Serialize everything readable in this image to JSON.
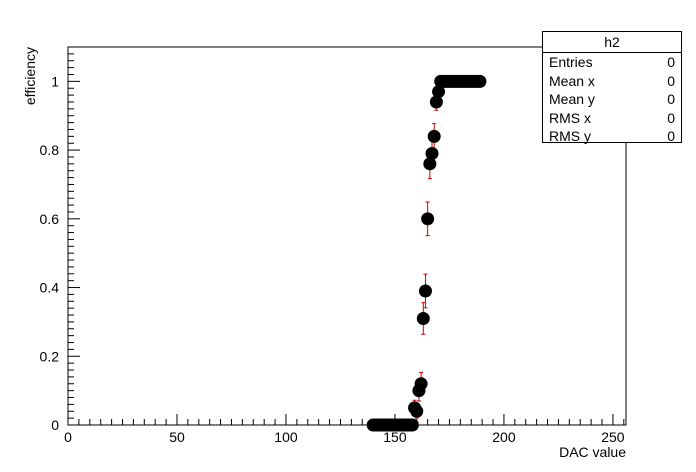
{
  "chart_data": {
    "type": "scatter",
    "title": "",
    "xlabel": "DAC value",
    "ylabel": "efficiency",
    "xlim": [
      0,
      256
    ],
    "ylim": [
      0,
      1.1
    ],
    "xticks": [
      0,
      50,
      100,
      150,
      200,
      250
    ],
    "yticks": [
      0,
      0.2,
      0.4,
      0.6,
      0.8,
      1
    ],
    "grid": false,
    "marker": "filled-circle",
    "colors": {
      "marker": "#000000",
      "error_bar": "#cc0000",
      "axis": "#000000"
    },
    "series": [
      {
        "x": [
          140,
          141,
          142,
          143,
          144,
          145,
          146,
          147,
          148,
          149,
          150,
          151,
          152,
          153,
          154,
          155,
          156,
          157,
          158,
          159,
          160,
          161,
          162,
          163,
          164,
          165,
          166,
          167,
          168,
          169,
          170,
          171,
          172,
          173,
          174,
          175,
          176,
          177,
          178,
          179,
          180,
          181,
          182,
          183,
          184,
          185,
          186,
          187,
          188,
          189
        ],
        "y": [
          0,
          0,
          0,
          0,
          0,
          0,
          0,
          0,
          0,
          0,
          0,
          0,
          0,
          0,
          0,
          0,
          0,
          0,
          0,
          0.05,
          0.04,
          0.1,
          0.12,
          0.31,
          0.39,
          0.6,
          0.76,
          0.79,
          0.84,
          0.94,
          0.97,
          1,
          1,
          1,
          1,
          1,
          1,
          1,
          1,
          1,
          1,
          1,
          1,
          1,
          1,
          1,
          1,
          1,
          1,
          1
        ],
        "yerr": [
          0,
          0,
          0,
          0,
          0,
          0,
          0,
          0,
          0,
          0,
          0,
          0,
          0,
          0,
          0,
          0,
          0,
          0,
          0,
          0.022,
          0.02,
          0.03,
          0.033,
          0.046,
          0.049,
          0.049,
          0.043,
          0.041,
          0.037,
          0.024,
          0.017,
          0,
          0,
          0,
          0,
          0,
          0,
          0,
          0,
          0,
          0,
          0,
          0,
          0,
          0,
          0,
          0,
          0,
          0,
          0
        ]
      }
    ]
  },
  "stats": {
    "title": "h2",
    "rows": [
      {
        "key": "Entries",
        "value": "0"
      },
      {
        "key": "Mean x",
        "value": "0"
      },
      {
        "key": "Mean y",
        "value": "0"
      },
      {
        "key": "RMS x",
        "value": "0"
      },
      {
        "key": "RMS y",
        "value": "0"
      }
    ]
  }
}
